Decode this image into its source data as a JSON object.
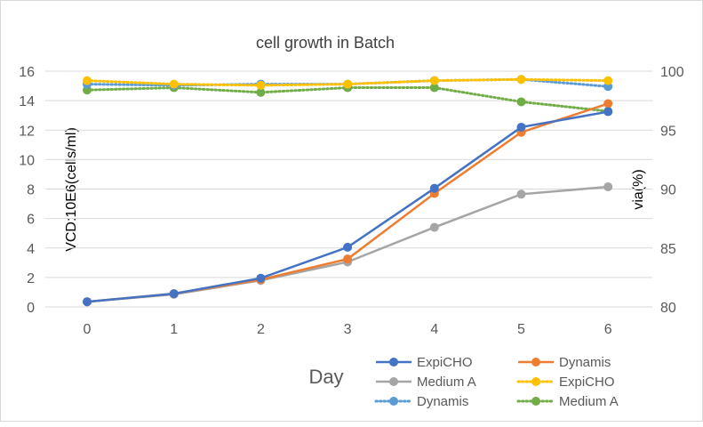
{
  "chart_data": {
    "type": "line",
    "title": "cell growth in Batch",
    "xlabel": "Day",
    "ylabel": "VCD:10E6(cells/ml)",
    "y2label": "via(%)",
    "x": [
      0,
      1,
      2,
      3,
      4,
      5,
      6
    ],
    "ylim": [
      0,
      16
    ],
    "yticks": [
      0,
      2,
      4,
      6,
      8,
      10,
      12,
      14,
      16
    ],
    "y2lim": [
      80,
      100
    ],
    "y2ticks": [
      80,
      85,
      90,
      95,
      100
    ],
    "grid": true,
    "legend_position": "bottom-right",
    "series": [
      {
        "name": "ExpiCHO",
        "axis": "left",
        "style": "solid",
        "color": "#4472C4",
        "values": [
          0.35,
          0.9,
          1.95,
          4.05,
          8.05,
          12.2,
          13.25
        ]
      },
      {
        "name": "Dynamis",
        "axis": "left",
        "style": "solid",
        "color": "#ED7D31",
        "values": [
          0.35,
          0.9,
          1.85,
          3.25,
          7.7,
          11.85,
          13.8
        ]
      },
      {
        "name": "Medium A",
        "axis": "left",
        "style": "solid",
        "color": "#A5A5A5",
        "values": [
          0.35,
          0.85,
          1.8,
          3.05,
          5.4,
          7.65,
          8.15
        ]
      },
      {
        "name": "ExpiCHO",
        "axis": "right",
        "style": "dotted",
        "color": "#FFC000",
        "values": [
          99.2,
          98.9,
          98.8,
          98.9,
          99.2,
          99.3,
          99.2
        ]
      },
      {
        "name": "Dynamis",
        "axis": "right",
        "style": "dotted",
        "color": "#5B9BD5",
        "values": [
          98.9,
          98.8,
          98.9,
          98.9,
          99.2,
          99.3,
          98.7
        ]
      },
      {
        "name": "Medium A",
        "axis": "right",
        "style": "dotted",
        "color": "#70AD47",
        "values": [
          98.4,
          98.6,
          98.2,
          98.6,
          98.6,
          97.4,
          96.6
        ]
      }
    ]
  }
}
